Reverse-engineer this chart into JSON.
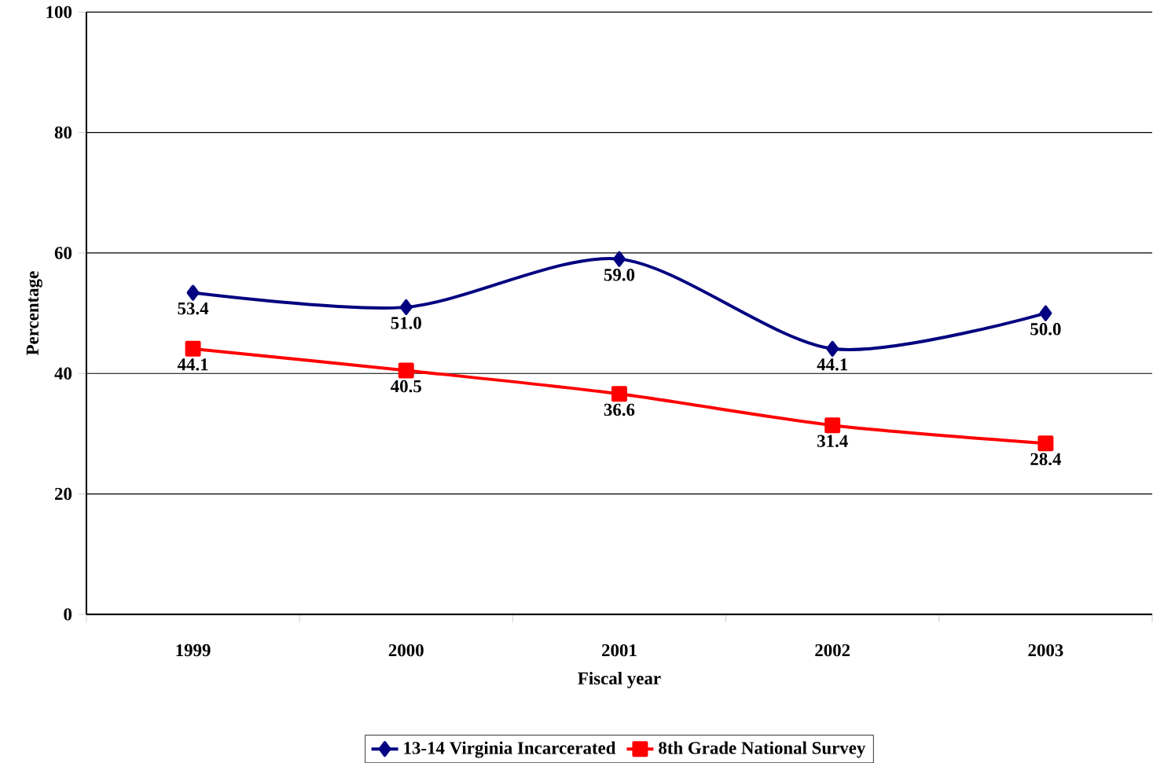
{
  "chart_data": {
    "type": "line",
    "xlabel": "Fiscal year",
    "ylabel": "Percentage",
    "categories": [
      "1999",
      "2000",
      "2001",
      "2002",
      "2003"
    ],
    "series": [
      {
        "name": "13-14 Virginia Incarcerated",
        "color": "#000080",
        "marker": "diamond",
        "values": [
          53.4,
          51.0,
          59.0,
          44.1,
          50.0
        ],
        "value_labels": [
          "53.4",
          "51.0",
          "59.0",
          "44.1",
          "50.0"
        ]
      },
      {
        "name": "8th Grade National Survey",
        "color": "#ff0000",
        "marker": "square",
        "values": [
          44.1,
          40.5,
          36.6,
          31.4,
          28.4
        ],
        "value_labels": [
          "44.1",
          "40.5",
          "36.6",
          "31.4",
          "28.4"
        ]
      }
    ],
    "ylim": [
      0,
      100
    ],
    "yticks": [
      0,
      20,
      40,
      60,
      80,
      100
    ],
    "grid": "y",
    "legend": "bottom",
    "line_style": "solid"
  }
}
